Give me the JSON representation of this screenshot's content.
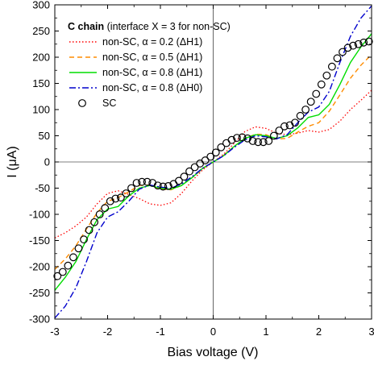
{
  "chart_data": {
    "type": "line",
    "xlabel": "Bias voltage (V)",
    "ylabel": "I (μA)",
    "xlim": [
      -3,
      3
    ],
    "ylim": [
      -300,
      300
    ],
    "xticks": [
      "-3",
      "-2",
      "-1",
      "0",
      "1",
      "2",
      "3"
    ],
    "yticks": [
      "-300",
      "-250",
      "-200",
      "-150",
      "-100",
      "-50",
      "0",
      "50",
      "100",
      "150",
      "200",
      "250",
      "300"
    ],
    "zero_lines": true,
    "legend": {
      "title_bold": "C chain",
      "title_rest": " (interface X = 3 for non-SC)",
      "placement": "top-left"
    },
    "series": [
      {
        "name": "non-SC, α = 0.2 (ΔH1)",
        "color": "#ff0000",
        "style": "dotted",
        "x": [
          -3.0,
          -2.8,
          -2.6,
          -2.4,
          -2.2,
          -2.0,
          -1.8,
          -1.6,
          -1.4,
          -1.2,
          -1.0,
          -0.8,
          -0.6,
          -0.4,
          -0.2,
          0.0,
          0.2,
          0.4,
          0.6,
          0.8,
          1.0,
          1.2,
          1.4,
          1.6,
          1.8,
          2.0,
          2.2,
          2.4,
          2.6,
          2.8,
          3.0
        ],
        "y": [
          -145,
          -135,
          -122,
          -105,
          -80,
          -60,
          -55,
          -62,
          -70,
          -80,
          -83,
          -78,
          -60,
          -36,
          -15,
          0,
          15,
          36,
          58,
          67,
          64,
          55,
          52,
          55,
          60,
          57,
          62,
          78,
          100,
          118,
          137
        ]
      },
      {
        "name": "non-SC, α = 0.5 (ΔH1)",
        "color": "#ff8c00",
        "style": "dashed",
        "x": [
          -3.0,
          -2.8,
          -2.6,
          -2.4,
          -2.2,
          -2.0,
          -1.8,
          -1.6,
          -1.4,
          -1.2,
          -1.0,
          -0.8,
          -0.6,
          -0.4,
          -0.2,
          0.0,
          0.2,
          0.4,
          0.6,
          0.8,
          1.0,
          1.2,
          1.4,
          1.6,
          1.8,
          2.0,
          2.2,
          2.4,
          2.6,
          2.8,
          3.0
        ],
        "y": [
          -205,
          -185,
          -160,
          -128,
          -97,
          -75,
          -68,
          -57,
          -45,
          -44,
          -52,
          -53,
          -45,
          -30,
          -13,
          0,
          13,
          30,
          45,
          53,
          52,
          44,
          45,
          57,
          68,
          75,
          97,
          128,
          160,
          185,
          205
        ]
      },
      {
        "name": "non-SC, α = 0.8 (ΔH1)",
        "color": "#00dd00",
        "style": "solid",
        "x": [
          -3.0,
          -2.8,
          -2.6,
          -2.4,
          -2.2,
          -2.0,
          -1.8,
          -1.6,
          -1.4,
          -1.2,
          -1.0,
          -0.8,
          -0.6,
          -0.4,
          -0.2,
          0.0,
          0.2,
          0.4,
          0.6,
          0.8,
          1.0,
          1.2,
          1.4,
          1.6,
          1.8,
          2.0,
          2.2,
          2.4,
          2.6,
          2.8,
          3.0
        ],
        "y": [
          -245,
          -220,
          -190,
          -148,
          -110,
          -90,
          -85,
          -65,
          -50,
          -45,
          -50,
          -52,
          -45,
          -30,
          -12,
          0,
          12,
          30,
          45,
          52,
          50,
          45,
          50,
          65,
          85,
          90,
          110,
          148,
          190,
          220,
          245
        ]
      },
      {
        "name": "non-SC, α = 0.8 (ΔH0)",
        "color": "#0000cc",
        "style": "dashdot",
        "x": [
          -3.0,
          -2.8,
          -2.6,
          -2.4,
          -2.2,
          -2.0,
          -1.8,
          -1.6,
          -1.4,
          -1.2,
          -1.0,
          -0.8,
          -0.6,
          -0.4,
          -0.2,
          0.0,
          0.2,
          0.4,
          0.6,
          0.8,
          1.0,
          1.2,
          1.4,
          1.6,
          1.8,
          2.0,
          2.2,
          2.4,
          2.6,
          2.8,
          3.0
        ],
        "y": [
          -298,
          -275,
          -240,
          -190,
          -135,
          -105,
          -95,
          -75,
          -52,
          -44,
          -48,
          -50,
          -42,
          -28,
          -12,
          0,
          12,
          28,
          42,
          50,
          48,
          44,
          52,
          75,
          95,
          105,
          135,
          190,
          240,
          275,
          298
        ]
      },
      {
        "name": "SC",
        "color": "#000000",
        "style": "markers",
        "x": [
          -2.95,
          -2.85,
          -2.75,
          -2.65,
          -2.55,
          -2.45,
          -2.35,
          -2.25,
          -2.15,
          -2.05,
          -1.95,
          -1.85,
          -1.75,
          -1.65,
          -1.55,
          -1.45,
          -1.35,
          -1.25,
          -1.15,
          -1.05,
          -0.95,
          -0.85,
          -0.75,
          -0.65,
          -0.55,
          -0.45,
          -0.35,
          -0.25,
          -0.15,
          -0.05,
          0.05,
          0.15,
          0.25,
          0.35,
          0.45,
          0.55,
          0.65,
          0.75,
          0.85,
          0.95,
          1.05,
          1.15,
          1.25,
          1.35,
          1.45,
          1.55,
          1.65,
          1.75,
          1.85,
          1.95,
          2.05,
          2.15,
          2.25,
          2.35,
          2.45,
          2.55,
          2.65,
          2.75,
          2.85,
          2.95
        ],
        "y": [
          -218,
          -210,
          -198,
          -182,
          -165,
          -148,
          -130,
          -115,
          -100,
          -88,
          -75,
          -70,
          -68,
          -60,
          -50,
          -40,
          -38,
          -38,
          -40,
          -45,
          -47,
          -46,
          -42,
          -36,
          -28,
          -18,
          -10,
          -3,
          3,
          10,
          18,
          28,
          36,
          42,
          46,
          47,
          45,
          40,
          38,
          38,
          40,
          50,
          60,
          68,
          70,
          75,
          88,
          100,
          115,
          130,
          148,
          165,
          182,
          198,
          210,
          218,
          222,
          225,
          228,
          230
        ]
      }
    ]
  }
}
